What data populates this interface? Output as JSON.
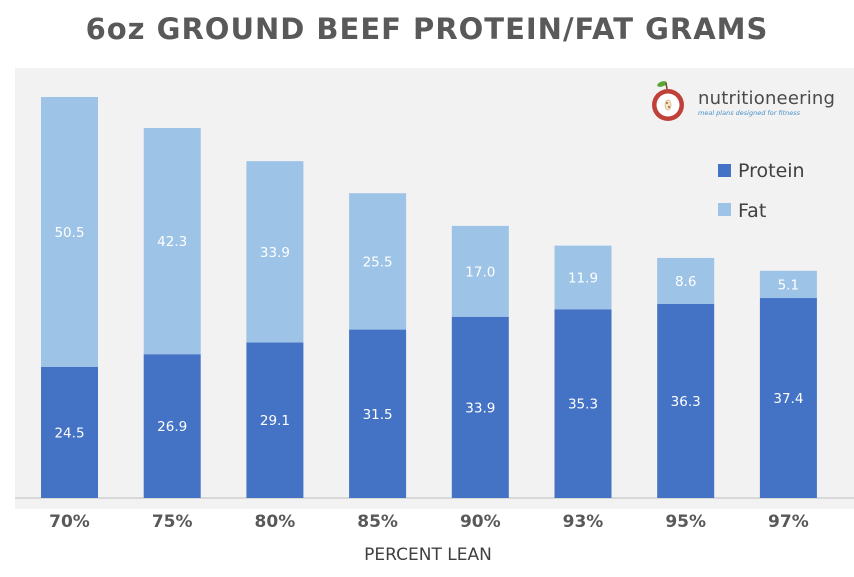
{
  "logo": {
    "name": "nutritioneering",
    "tagline": "meal plans designed for fitness"
  },
  "colors": {
    "protein": "#4472c4",
    "fat": "#9dc3e6",
    "axis": "#bfbfbf",
    "text": "#595959"
  },
  "chart_data": {
    "type": "bar",
    "stacked": true,
    "title": "6oz GROUND BEEF PROTEIN/FAT GRAMS",
    "xlabel": "PERCENT LEAN",
    "ylabel": "",
    "categories": [
      "70%",
      "75%",
      "80%",
      "85%",
      "90%",
      "93%",
      "95%",
      "97%"
    ],
    "series": [
      {
        "name": "Protein",
        "values": [
          24.5,
          26.9,
          29.1,
          31.5,
          33.9,
          35.3,
          36.3,
          37.4
        ]
      },
      {
        "name": "Fat",
        "values": [
          50.5,
          42.3,
          33.9,
          25.5,
          17.0,
          11.9,
          8.6,
          5.1
        ]
      }
    ],
    "ylim": [
      0,
      80
    ],
    "grid": false,
    "legend": "top-right",
    "data_labels": true
  }
}
